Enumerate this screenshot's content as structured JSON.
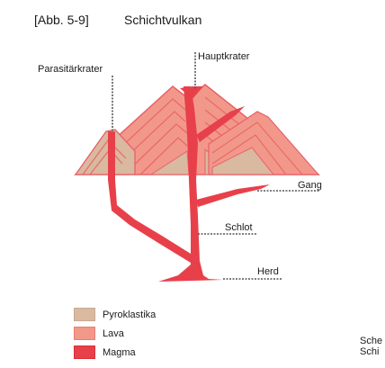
{
  "caption": {
    "code": "[Abb. 5-9]",
    "title": "Schichtvulkan"
  },
  "labels": {
    "parasitaerkrater": "Parasitärkrater",
    "hauptkrater": "Hauptkrater",
    "gang": "Gang",
    "schlot": "Schlot",
    "herd": "Herd"
  },
  "legend": [
    {
      "label": "Pyroklastika",
      "color": "#d9b9a0"
    },
    {
      "label": "Lava",
      "color": "#f2988a"
    },
    {
      "label": "Magma",
      "color": "#e8404a"
    }
  ],
  "corner_note": {
    "line1": "Sche",
    "line2": "Schi"
  }
}
